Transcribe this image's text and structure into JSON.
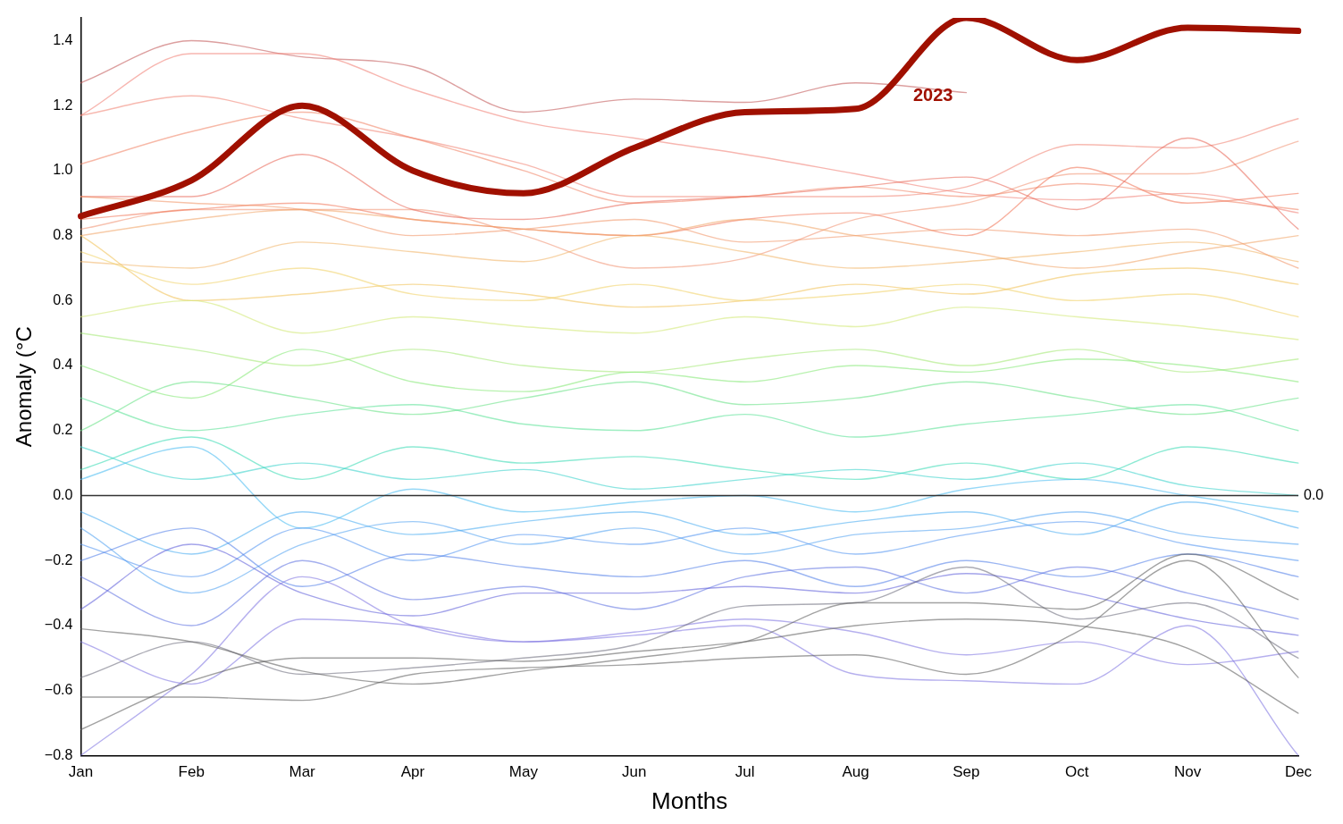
{
  "chart_data": {
    "type": "line",
    "xlabel": "Months",
    "ylabel": "Anomaly (°C",
    "categories": [
      "Jan",
      "Feb",
      "Mar",
      "Apr",
      "May",
      "Jun",
      "Jul",
      "Aug",
      "Sep",
      "Oct",
      "Nov",
      "Dec"
    ],
    "ylim": [
      -0.8,
      1.47
    ],
    "yticks": [
      {
        "value": -0.8,
        "label": "−0.8"
      },
      {
        "value": -0.6,
        "label": "−0.6"
      },
      {
        "value": -0.4,
        "label": "−0.4"
      },
      {
        "value": -0.2,
        "label": "−0.2"
      },
      {
        "value": 0,
        "label": "0.0"
      },
      {
        "value": 0.2,
        "label": "0.2"
      },
      {
        "value": 0.4,
        "label": "0.4"
      },
      {
        "value": 0.6,
        "label": "0.6"
      },
      {
        "value": 0.8,
        "label": "0.8"
      },
      {
        "value": 1.0,
        "label": "1.0"
      },
      {
        "value": 1.2,
        "label": "1.2"
      },
      {
        "value": 1.4,
        "label": "1.4"
      }
    ],
    "grid": false,
    "legend": false,
    "marker": "none",
    "line_style": "solid",
    "ref_lines": [
      {
        "axis": "y",
        "value": 0,
        "label": "0.0",
        "color": "#333333"
      }
    ],
    "series": [
      {
        "color": "#555555",
        "values": [
          -0.72,
          -0.57,
          -0.5,
          -0.5,
          -0.51,
          -0.48,
          -0.45,
          -0.4,
          -0.38,
          -0.4,
          -0.47,
          -0.67
        ]
      },
      {
        "color": "#555555",
        "values": [
          -0.62,
          -0.62,
          -0.63,
          -0.55,
          -0.53,
          -0.52,
          -0.5,
          -0.49,
          -0.55,
          -0.42,
          -0.2,
          -0.56
        ]
      },
      {
        "color": "#555555",
        "values": [
          -0.41,
          -0.45,
          -0.54,
          -0.58,
          -0.54,
          -0.5,
          -0.45,
          -0.33,
          -0.33,
          -0.35,
          -0.18,
          -0.32
        ]
      },
      {
        "color": "#666677",
        "values": [
          -0.56,
          -0.45,
          -0.55,
          -0.53,
          -0.5,
          -0.46,
          -0.34,
          -0.33,
          -0.22,
          -0.38,
          -0.33,
          -0.5
        ]
      },
      {
        "color": "#7a70e0",
        "values": [
          -0.8,
          -0.55,
          -0.25,
          -0.4,
          -0.45,
          -0.43,
          -0.4,
          -0.55,
          -0.57,
          -0.58,
          -0.4,
          -0.8
        ]
      },
      {
        "color": "#7a70e0",
        "values": [
          -0.45,
          -0.58,
          -0.38,
          -0.4,
          -0.45,
          -0.42,
          -0.38,
          -0.42,
          -0.49,
          -0.45,
          -0.52,
          -0.48
        ]
      },
      {
        "color": "#5a5ad8",
        "values": [
          -0.35,
          -0.15,
          -0.3,
          -0.37,
          -0.3,
          -0.3,
          -0.28,
          -0.3,
          -0.24,
          -0.3,
          -0.38,
          -0.43
        ]
      },
      {
        "color": "#5a6ee0",
        "values": [
          -0.25,
          -0.4,
          -0.2,
          -0.32,
          -0.28,
          -0.35,
          -0.25,
          -0.22,
          -0.3,
          -0.22,
          -0.3,
          -0.38
        ]
      },
      {
        "color": "#4a7ae8",
        "values": [
          -0.2,
          -0.1,
          -0.28,
          -0.18,
          -0.22,
          -0.25,
          -0.2,
          -0.28,
          -0.2,
          -0.25,
          -0.18,
          -0.25
        ]
      },
      {
        "color": "#4a90f0",
        "values": [
          -0.15,
          -0.25,
          -0.1,
          -0.2,
          -0.12,
          -0.15,
          -0.1,
          -0.18,
          -0.12,
          -0.08,
          -0.15,
          -0.2
        ]
      },
      {
        "color": "#40a8f0",
        "values": [
          -0.05,
          -0.18,
          -0.05,
          -0.12,
          -0.08,
          -0.05,
          -0.12,
          -0.08,
          -0.05,
          -0.12,
          -0.02,
          -0.1
        ]
      },
      {
        "color": "#40b8f0",
        "values": [
          0.05,
          0.15,
          -0.1,
          0.02,
          -0.05,
          -0.02,
          0.0,
          -0.05,
          0.02,
          0.05,
          0.0,
          -0.05
        ]
      },
      {
        "color": "#4a9ef0",
        "values": [
          -0.1,
          -0.3,
          -0.15,
          -0.08,
          -0.15,
          -0.1,
          -0.18,
          -0.12,
          -0.1,
          -0.05,
          -0.12,
          -0.15
        ]
      },
      {
        "color": "#30d0c8",
        "values": [
          0.15,
          0.05,
          0.1,
          0.05,
          0.08,
          0.02,
          0.05,
          0.08,
          0.05,
          0.1,
          0.03,
          0.0
        ]
      },
      {
        "color": "#30d8b0",
        "values": [
          0.08,
          0.18,
          0.05,
          0.15,
          0.1,
          0.12,
          0.08,
          0.05,
          0.1,
          0.05,
          0.15,
          0.1
        ]
      },
      {
        "color": "#50e090",
        "values": [
          0.3,
          0.2,
          0.25,
          0.28,
          0.22,
          0.2,
          0.25,
          0.18,
          0.22,
          0.25,
          0.28,
          0.2
        ]
      },
      {
        "color": "#60e080",
        "values": [
          0.2,
          0.35,
          0.3,
          0.25,
          0.3,
          0.35,
          0.28,
          0.3,
          0.35,
          0.3,
          0.25,
          0.3
        ]
      },
      {
        "color": "#80e870",
        "values": [
          0.4,
          0.3,
          0.45,
          0.35,
          0.32,
          0.38,
          0.35,
          0.4,
          0.38,
          0.42,
          0.4,
          0.35
        ]
      },
      {
        "color": "#a0e870",
        "values": [
          0.5,
          0.45,
          0.4,
          0.45,
          0.4,
          0.38,
          0.42,
          0.45,
          0.4,
          0.45,
          0.38,
          0.42
        ]
      },
      {
        "color": "#d0e870",
        "values": [
          0.55,
          0.6,
          0.5,
          0.55,
          0.52,
          0.5,
          0.55,
          0.52,
          0.58,
          0.55,
          0.52,
          0.48
        ]
      },
      {
        "color": "#f0d060",
        "values": [
          0.75,
          0.65,
          0.7,
          0.62,
          0.6,
          0.65,
          0.6,
          0.62,
          0.65,
          0.6,
          0.62,
          0.55
        ]
      },
      {
        "color": "#f0c050",
        "values": [
          0.8,
          0.6,
          0.62,
          0.65,
          0.62,
          0.58,
          0.6,
          0.65,
          0.62,
          0.68,
          0.7,
          0.65
        ]
      },
      {
        "color": "#f0a060",
        "values": [
          0.8,
          0.85,
          0.88,
          0.85,
          0.82,
          0.8,
          0.85,
          0.8,
          0.75,
          0.7,
          0.75,
          0.8
        ]
      },
      {
        "color": "#f09060",
        "values": [
          0.92,
          0.9,
          0.88,
          0.8,
          0.82,
          0.85,
          0.78,
          0.8,
          0.82,
          0.8,
          0.82,
          0.7
        ]
      },
      {
        "color": "#f0b060",
        "values": [
          0.72,
          0.7,
          0.78,
          0.75,
          0.72,
          0.8,
          0.75,
          0.7,
          0.72,
          0.75,
          0.78,
          0.72
        ]
      },
      {
        "color": "#f08060",
        "values": [
          1.02,
          1.12,
          1.18,
          1.1,
          1.0,
          0.9,
          0.92,
          0.95,
          0.92,
          0.96,
          0.92,
          0.88
        ]
      },
      {
        "color": "#e86050",
        "values": [
          0.92,
          0.92,
          1.05,
          0.88,
          0.85,
          0.9,
          0.92,
          0.95,
          0.98,
          0.88,
          1.1,
          0.82
        ]
      },
      {
        "color": "#f07050",
        "values": [
          0.85,
          0.88,
          0.9,
          0.85,
          0.82,
          0.8,
          0.85,
          0.87,
          0.8,
          1.01,
          0.9,
          0.93
        ]
      },
      {
        "color": "#f09070",
        "values": [
          0.82,
          0.88,
          0.88,
          0.88,
          0.8,
          0.7,
          0.73,
          0.85,
          0.9,
          0.99,
          0.99,
          1.09
        ]
      },
      {
        "color": "#f08070",
        "values": [
          1.17,
          1.23,
          1.16,
          1.1,
          1.02,
          0.92,
          0.92,
          0.92,
          0.95,
          1.08,
          1.07,
          1.16
        ]
      },
      {
        "color": "#f07a70",
        "values": [
          1.17,
          1.36,
          1.36,
          1.25,
          1.15,
          1.1,
          1.05,
          0.99,
          0.93,
          0.91,
          0.93,
          0.87
        ]
      },
      {
        "color": "#c05050",
        "values": [
          1.27,
          1.4,
          1.35,
          1.32,
          1.18,
          1.22,
          1.21,
          1.27,
          1.24,
          null,
          null,
          null
        ]
      },
      {
        "name": "2023",
        "color": "#a01000",
        "values": [
          0.86,
          0.97,
          1.2,
          1.0,
          0.93,
          1.07,
          1.18,
          1.19,
          1.47,
          1.34,
          1.44,
          1.43
        ]
      }
    ]
  }
}
